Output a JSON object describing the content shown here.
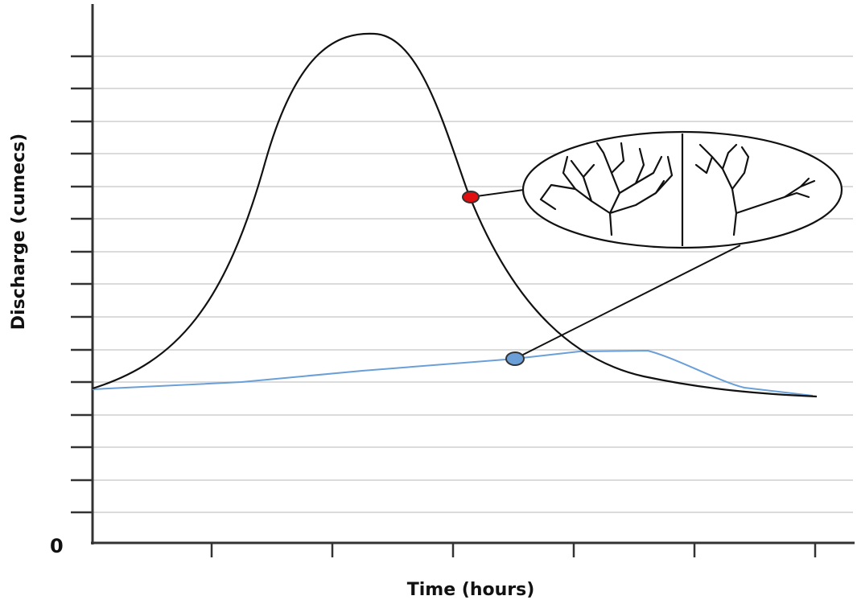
{
  "axes": {
    "y_label": "Discharge (cumecs)",
    "x_label": "Time (hours)",
    "origin_label": "0"
  }
}
